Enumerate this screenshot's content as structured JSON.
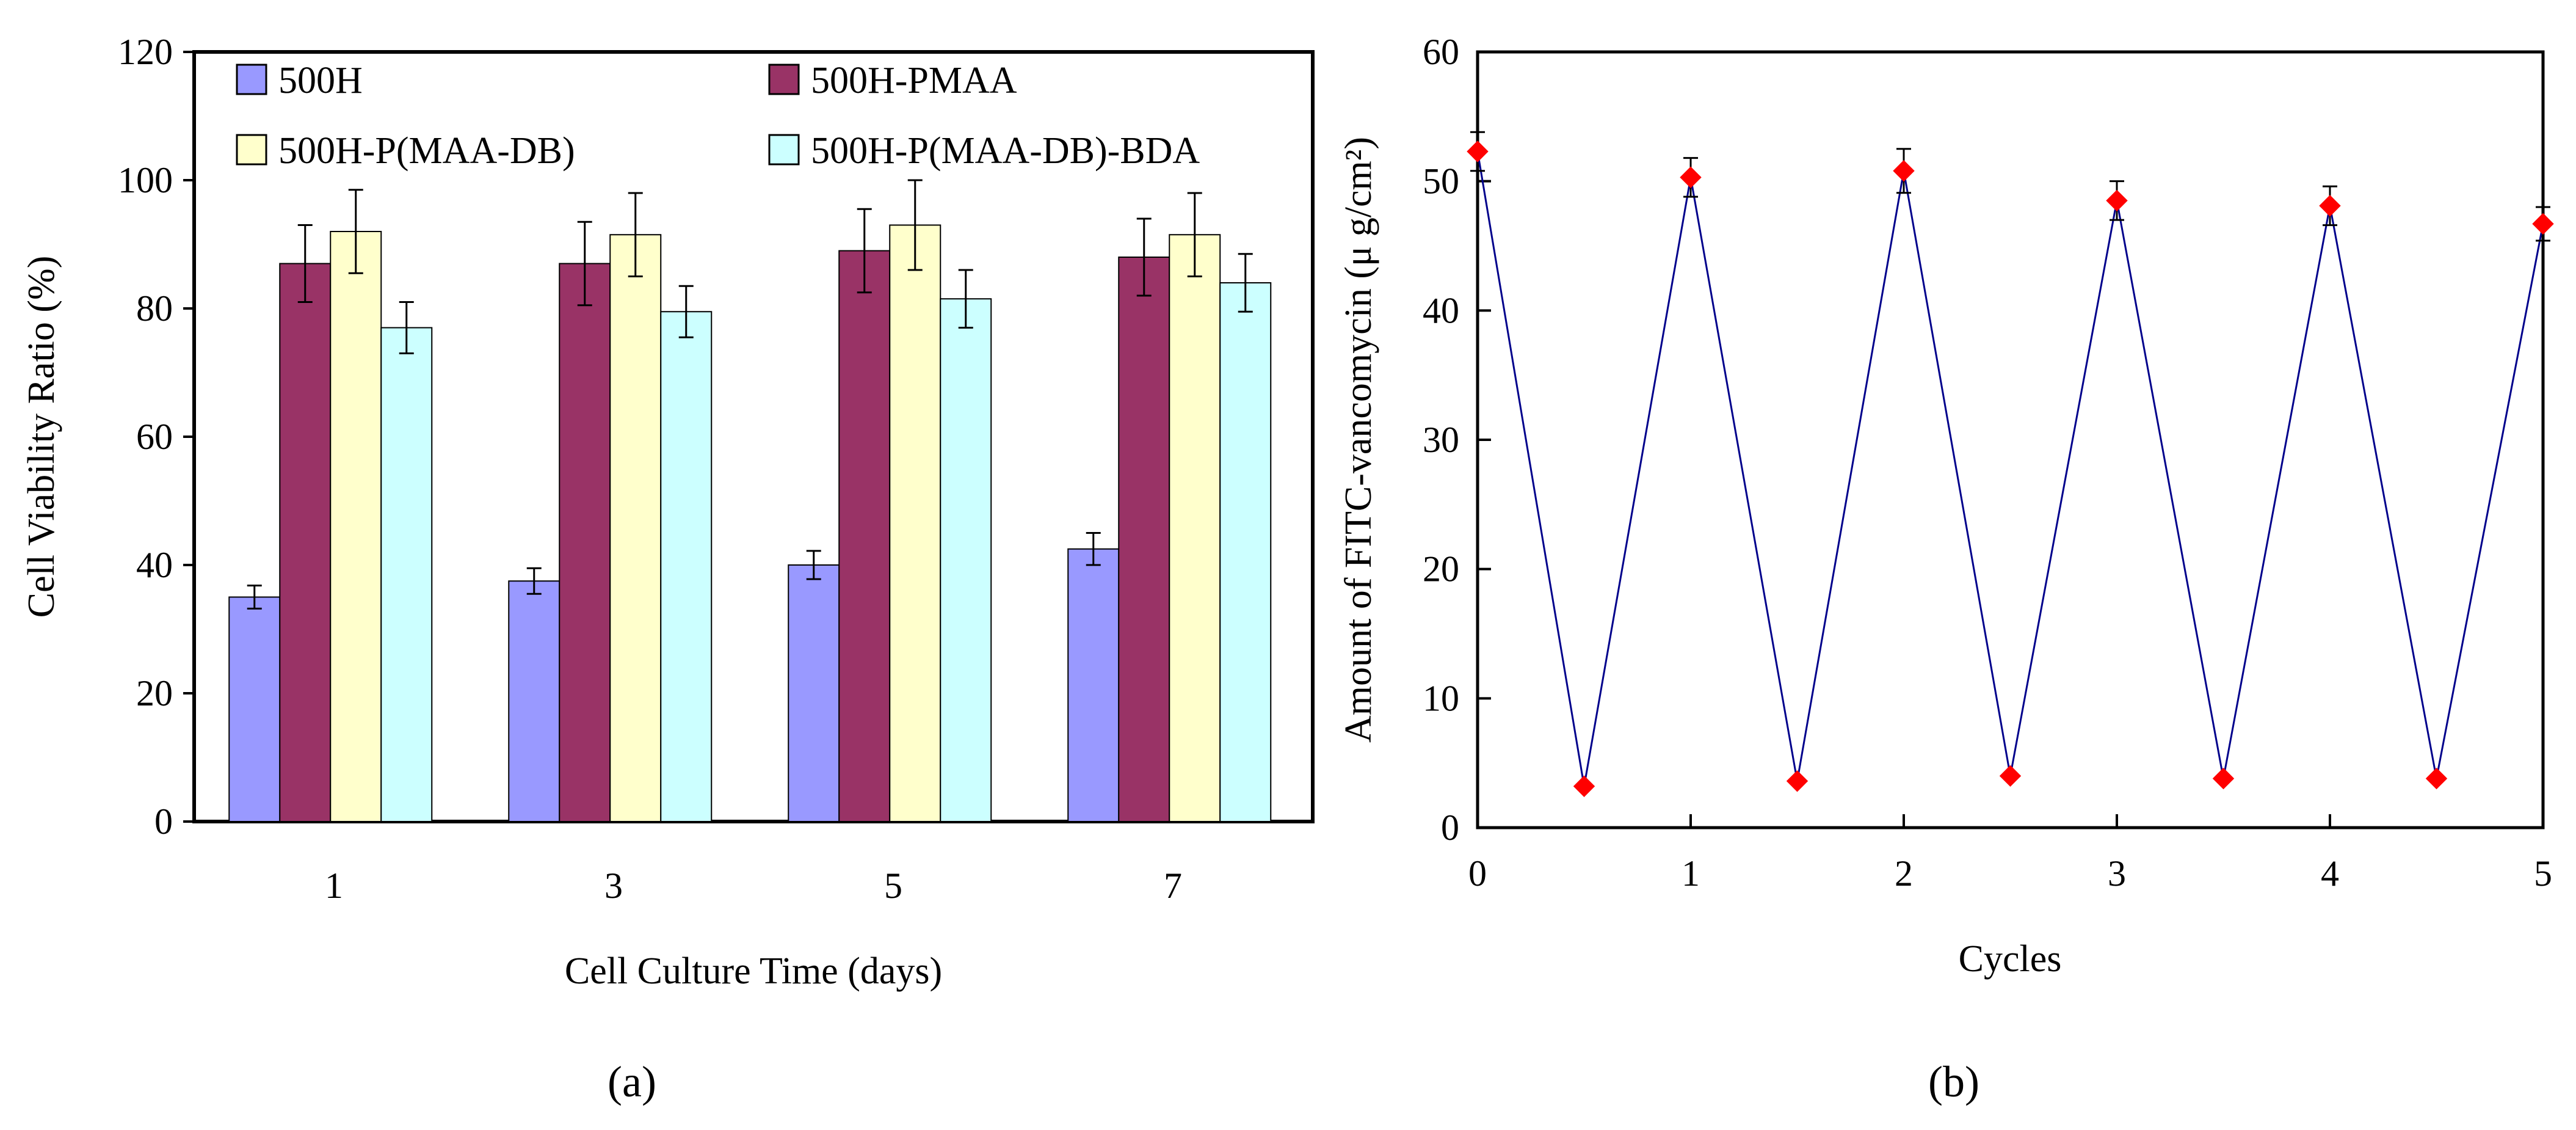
{
  "chart_data": [
    {
      "type": "bar",
      "panel_label": "(a)",
      "xlabel": "Cell Culture Time (days)",
      "ylabel": "Cell Viability Ratio (%)",
      "ylim": [
        0,
        120
      ],
      "yticks": [
        0,
        20,
        40,
        60,
        80,
        100,
        120
      ],
      "categories": [
        "1",
        "3",
        "5",
        "7"
      ],
      "legend_position": "top",
      "series": [
        {
          "name": "500H",
          "color": "#9999ff",
          "values": [
            35,
            37.5,
            40,
            42.5
          ],
          "errors": [
            1.8,
            2,
            2.2,
            2.5
          ]
        },
        {
          "name": "500H-PMAA",
          "color": "#993366",
          "values": [
            87,
            87,
            89,
            88
          ],
          "errors": [
            6,
            6.5,
            6.5,
            6
          ]
        },
        {
          "name": "500H-P(MAA-DB)",
          "color": "#ffffcc",
          "values": [
            92,
            91.5,
            93,
            91.5
          ],
          "errors": [
            6.5,
            6.5,
            7,
            6.5
          ]
        },
        {
          "name": "500H-P(MAA-DB)-BDA",
          "color": "#ccffff",
          "values": [
            77,
            79.5,
            81.5,
            84
          ],
          "errors": [
            4,
            4,
            4.5,
            4.5
          ]
        }
      ]
    },
    {
      "type": "line",
      "panel_label": "(b)",
      "xlabel": "Cycles",
      "ylabel": "Amount of FITC-vancomycin (μ g/cm²)",
      "xlim": [
        0,
        5
      ],
      "ylim": [
        0,
        60
      ],
      "xticks": [
        0,
        1,
        2,
        3,
        4,
        5
      ],
      "yticks": [
        0,
        10,
        20,
        30,
        40,
        50,
        60
      ],
      "series": [
        {
          "name": "FITC-vancomycin",
          "line_color": "#00008b",
          "marker_color": "#ff0000",
          "x": [
            0,
            0.5,
            1,
            1.5,
            2,
            2.5,
            3,
            3.5,
            4,
            4.5,
            5
          ],
          "y": [
            52.3,
            3.2,
            50.3,
            3.6,
            50.8,
            4,
            48.5,
            3.8,
            48.1,
            3.8,
            46.7
          ],
          "errors": [
            1.5,
            0,
            1.5,
            0,
            1.7,
            0,
            1.5,
            0,
            1.5,
            0,
            1.3
          ]
        }
      ]
    }
  ]
}
